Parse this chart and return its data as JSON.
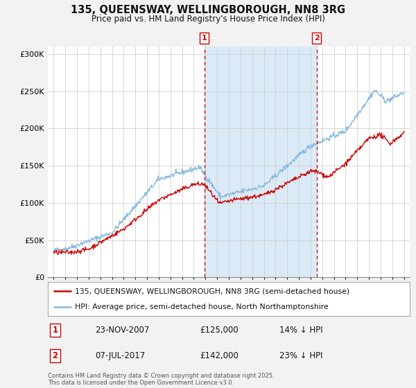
{
  "title": "135, QUEENSWAY, WELLINGBOROUGH, NN8 3RG",
  "subtitle": "Price paid vs. HM Land Registry's House Price Index (HPI)",
  "bg_color": "#f2f2f2",
  "chart_bg": "#ffffff",
  "hpi_color": "#85b8dc",
  "price_color": "#cc0000",
  "vline1_x": 2007.9,
  "vline2_x": 2017.53,
  "vline_color": "#cc0000",
  "shade_color": "#daeaf7",
  "legend1": "135, QUEENSWAY, WELLINGBOROUGH, NN8 3RG (semi-detached house)",
  "legend2": "HPI: Average price, semi-detached house, North Northamptonshire",
  "annotation1_label": "1",
  "annotation1_date": "23-NOV-2007",
  "annotation1_price": "£125,000",
  "annotation1_hpi": "14% ↓ HPI",
  "annotation2_label": "2",
  "annotation2_date": "07-JUL-2017",
  "annotation2_price": "£142,000",
  "annotation2_hpi": "23% ↓ HPI",
  "footer": "Contains HM Land Registry data © Crown copyright and database right 2025.\nThis data is licensed under the Open Government Licence v3.0.",
  "ylim": [
    0,
    310000
  ],
  "yticks": [
    0,
    50000,
    100000,
    150000,
    200000,
    250000,
    300000
  ],
  "ytick_labels": [
    "£0",
    "£50K",
    "£100K",
    "£150K",
    "£200K",
    "£250K",
    "£300K"
  ],
  "xlim_start": 1994.5,
  "xlim_end": 2025.5,
  "xticks": [
    1995,
    1996,
    1997,
    1998,
    1999,
    2000,
    2001,
    2002,
    2003,
    2004,
    2005,
    2006,
    2007,
    2008,
    2009,
    2010,
    2011,
    2012,
    2013,
    2014,
    2015,
    2016,
    2017,
    2018,
    2019,
    2020,
    2021,
    2022,
    2023,
    2024,
    2025
  ]
}
